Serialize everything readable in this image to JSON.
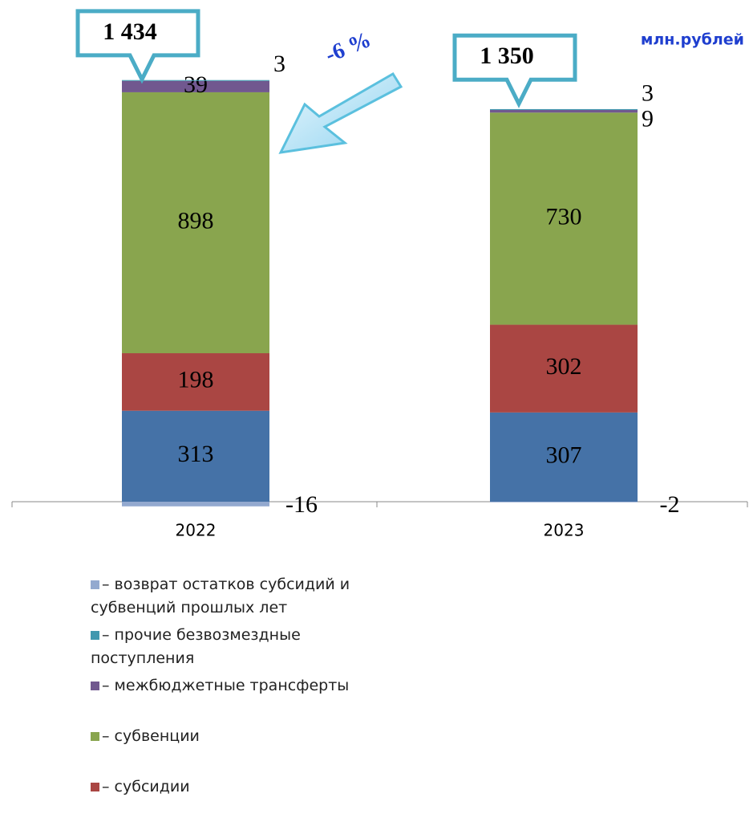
{
  "chart_data": {
    "type": "stacked-bar",
    "unit_label": "млн.рублей",
    "categories": [
      "2022",
      "2023"
    ],
    "totals": [
      {
        "value": 1434,
        "label": "1 434"
      },
      {
        "value": 1350,
        "label": "1 350"
      }
    ],
    "change_label": "-6 %",
    "series": [
      {
        "color": "#4572a7",
        "values": [
          313,
          307
        ]
      },
      {
        "name": "– субсидии",
        "color": "#aa4643",
        "values": [
          198,
          302
        ]
      },
      {
        "name": "– субвенции",
        "color": "#89a54e",
        "values": [
          898,
          730
        ]
      },
      {
        "name": "– межбюджетные трансферты",
        "color": "#71588f",
        "values": [
          39,
          9
        ]
      },
      {
        "name": "– прочие безвозмездные поступления",
        "color": "#4198af",
        "values": [
          3,
          3
        ]
      },
      {
        "name": "– возврат остатков субсидий и субвенций прошлых лет",
        "color": "#93a9cf",
        "values": [
          -16,
          -2
        ]
      }
    ]
  }
}
